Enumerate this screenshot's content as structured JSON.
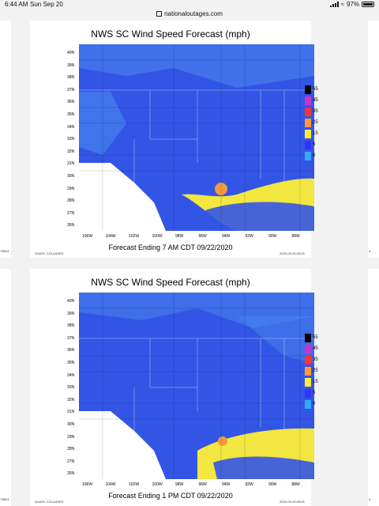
{
  "status": {
    "time": "6:44 AM",
    "date": "Sun Sep 20",
    "battery": "97%"
  },
  "browser": {
    "url": "nationaloutages.com"
  },
  "side": {
    "left_label": "R6t01",
    "right_label": "4"
  },
  "maps": [
    {
      "title": "NWS SC Wind Speed Forecast (mph)",
      "caption": "Forecast Ending 7 AM CDT 09/22/2020",
      "credit": "GrADS: COLA/IGES",
      "stamp": "2020-09-20-06:01"
    },
    {
      "title": "NWS SC Wind Speed Forecast (mph)",
      "caption": "Forecast Ending 1 PM CDT 09/22/2020",
      "credit": "GrADS: COLA/IGES",
      "stamp": "2020-09-20-06:01"
    }
  ],
  "lat_labels": [
    "40N",
    "39N",
    "38N",
    "37N",
    "36N",
    "35N",
    "34N",
    "33N",
    "32N",
    "31N",
    "30N",
    "29N",
    "28N",
    "27N",
    "26N"
  ],
  "lon_labels": [
    "106W",
    "104W",
    "102W",
    "100W",
    "98W",
    "96W",
    "94W",
    "92W",
    "90W",
    "88W"
  ],
  "legend": {
    "labels": [
      "55",
      "45",
      "35",
      "25",
      "15",
      "5",
      "0"
    ],
    "colors": [
      "#000000",
      "#cc33cc",
      "#ff3333",
      "#ff9933",
      "#ffee33",
      "#3333ff",
      "#33aaff"
    ]
  },
  "colors": {
    "land": "#3355e6",
    "land_light": "#4a88ee",
    "gulf_yellow": "#f2e640",
    "gulf_orange": "#f29a3c",
    "mexico": "#ffffff"
  }
}
